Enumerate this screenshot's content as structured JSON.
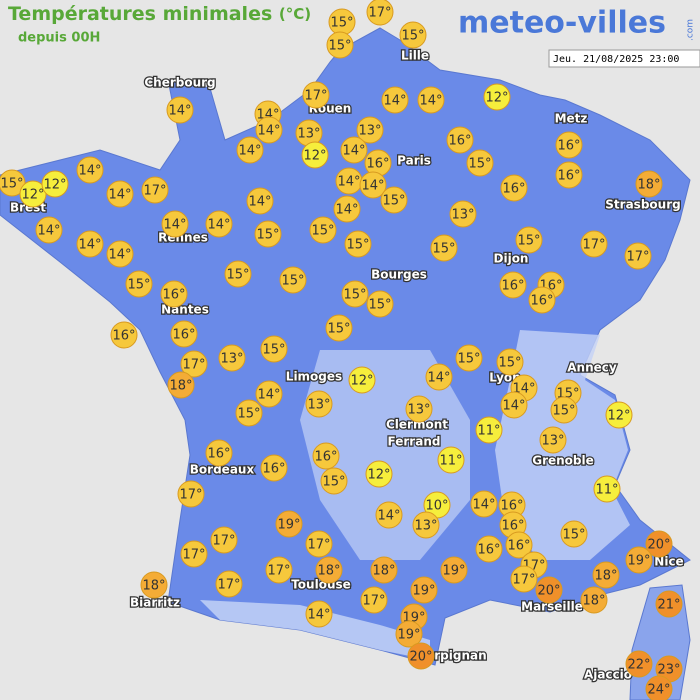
{
  "header": {
    "title": "Températures minimales",
    "unit": "(°C)",
    "subtitle": "depuis 00H",
    "logo": "meteo-villes",
    "logo_suffix": ".com",
    "date": "Jeu. 21/08/2025 23:00"
  },
  "cities": [
    "Cherbourg",
    "Rouen",
    "Lille",
    "Brest",
    "Rennes",
    "Paris",
    "Metz",
    "Strasbourg",
    "Dijon",
    "Bourges",
    "Nantes",
    "Limoges",
    "Clermont",
    "Ferrand",
    "Lyon",
    "Annecy",
    "Grenoble",
    "Bordeaux",
    "Nice",
    "Toulouse",
    "Biarritz",
    "Marseille",
    "Perpignan",
    "Ajaccio"
  ],
  "markers": [
    {
      "label": "15°",
      "value": 15
    },
    {
      "label": "17°",
      "value": 17
    },
    {
      "label": "15°",
      "value": 15
    },
    {
      "label": "15°",
      "value": 15
    },
    {
      "label": "12°",
      "value": 12
    },
    {
      "label": "17°",
      "value": 17
    },
    {
      "label": "14°",
      "value": 14
    },
    {
      "label": "14°",
      "value": 14
    },
    {
      "label": "14°",
      "value": 14
    },
    {
      "label": "14°",
      "value": 14
    },
    {
      "label": "14°",
      "value": 14
    },
    {
      "label": "13°",
      "value": 13
    },
    {
      "label": "13°",
      "value": 13
    },
    {
      "label": "12°",
      "value": 12
    },
    {
      "label": "14°",
      "value": 14
    },
    {
      "label": "14°",
      "value": 14
    },
    {
      "label": "16°",
      "value": 16
    },
    {
      "label": "16°",
      "value": 16
    },
    {
      "label": "16°",
      "value": 16
    },
    {
      "label": "15°",
      "value": 15
    },
    {
      "label": "16°",
      "value": 16
    },
    {
      "label": "15°",
      "value": 15
    },
    {
      "label": "12°",
      "value": 12
    },
    {
      "label": "12°",
      "value": 12
    },
    {
      "label": "14°",
      "value": 14
    },
    {
      "label": "14°",
      "value": 14
    },
    {
      "label": "17°",
      "value": 17
    },
    {
      "label": "14°",
      "value": 14
    },
    {
      "label": "14°",
      "value": 14
    },
    {
      "label": "15°",
      "value": 15
    },
    {
      "label": "16°",
      "value": 16
    },
    {
      "label": "18°",
      "value": 18
    },
    {
      "label": "14°",
      "value": 14
    },
    {
      "label": "14°",
      "value": 14
    },
    {
      "label": "13°",
      "value": 13
    },
    {
      "label": "14°",
      "value": 14
    },
    {
      "label": "14°",
      "value": 14
    },
    {
      "label": "14°",
      "value": 14
    },
    {
      "label": "15°",
      "value": 15
    },
    {
      "label": "15°",
      "value": 15
    },
    {
      "label": "15°",
      "value": 15
    },
    {
      "label": "15°",
      "value": 15
    },
    {
      "label": "17°",
      "value": 17
    },
    {
      "label": "14°",
      "value": 14
    },
    {
      "label": "14°",
      "value": 14
    },
    {
      "label": "15°",
      "value": 15
    },
    {
      "label": "17°",
      "value": 17
    },
    {
      "label": "15°",
      "value": 15
    },
    {
      "label": "15°",
      "value": 15
    },
    {
      "label": "15°",
      "value": 15
    },
    {
      "label": "16°",
      "value": 16
    },
    {
      "label": "15°",
      "value": 15
    },
    {
      "label": "15°",
      "value": 15
    },
    {
      "label": "16°",
      "value": 16
    },
    {
      "label": "16°",
      "value": 16
    },
    {
      "label": "16°",
      "value": 16
    },
    {
      "label": "16°",
      "value": 16
    },
    {
      "label": "16°",
      "value": 16
    },
    {
      "label": "15°",
      "value": 15
    },
    {
      "label": "13°",
      "value": 13
    },
    {
      "label": "15°",
      "value": 15
    },
    {
      "label": "17°",
      "value": 17
    },
    {
      "label": "18°",
      "value": 18
    },
    {
      "label": "12°",
      "value": 12
    },
    {
      "label": "14°",
      "value": 14
    },
    {
      "label": "15°",
      "value": 15
    },
    {
      "label": "15°",
      "value": 15
    },
    {
      "label": "14°",
      "value": 14
    },
    {
      "label": "15°",
      "value": 15
    },
    {
      "label": "14°",
      "value": 14
    },
    {
      "label": "15°",
      "value": 15
    },
    {
      "label": "12°",
      "value": 12
    },
    {
      "label": "14°",
      "value": 14
    },
    {
      "label": "13°",
      "value": 13
    },
    {
      "label": "15°",
      "value": 15
    },
    {
      "label": "13°",
      "value": 13
    },
    {
      "label": "11°",
      "value": 11
    },
    {
      "label": "13°",
      "value": 13
    },
    {
      "label": "16°",
      "value": 16
    },
    {
      "label": "16°",
      "value": 16
    },
    {
      "label": "16°",
      "value": 16
    },
    {
      "label": "15°",
      "value": 15
    },
    {
      "label": "12°",
      "value": 12
    },
    {
      "label": "11°",
      "value": 11
    },
    {
      "label": "11°",
      "value": 11
    },
    {
      "label": "17°",
      "value": 17
    },
    {
      "label": "19°",
      "value": 19
    },
    {
      "label": "14°",
      "value": 14
    },
    {
      "label": "10°",
      "value": 10
    },
    {
      "label": "14°",
      "value": 14
    },
    {
      "label": "16°",
      "value": 16
    },
    {
      "label": "13°",
      "value": 13
    },
    {
      "label": "16°",
      "value": 16
    },
    {
      "label": "15°",
      "value": 15
    },
    {
      "label": "17°",
      "value": 17
    },
    {
      "label": "17°",
      "value": 17
    },
    {
      "label": "16°",
      "value": 16
    },
    {
      "label": "16°",
      "value": 16
    },
    {
      "label": "20°",
      "value": 20
    },
    {
      "label": "19°",
      "value": 19
    },
    {
      "label": "17°",
      "value": 17
    },
    {
      "label": "17°",
      "value": 17
    },
    {
      "label": "18°",
      "value": 18
    },
    {
      "label": "18°",
      "value": 18
    },
    {
      "label": "19°",
      "value": 19
    },
    {
      "label": "17°",
      "value": 17
    },
    {
      "label": "17°",
      "value": 17
    },
    {
      "label": "18°",
      "value": 18
    },
    {
      "label": "18°",
      "value": 18
    },
    {
      "label": "17°",
      "value": 17
    },
    {
      "label": "19°",
      "value": 19
    },
    {
      "label": "20°",
      "value": 20
    },
    {
      "label": "18°",
      "value": 18
    },
    {
      "label": "21°",
      "value": 21
    },
    {
      "label": "17°",
      "value": 17
    },
    {
      "label": "14°",
      "value": 14
    },
    {
      "label": "19°",
      "value": 19
    },
    {
      "label": "19°",
      "value": 19
    },
    {
      "label": "20°",
      "value": 20
    },
    {
      "label": "22°",
      "value": 22
    },
    {
      "label": "23°",
      "value": 23
    },
    {
      "label": "24°",
      "value": 24
    }
  ]
}
